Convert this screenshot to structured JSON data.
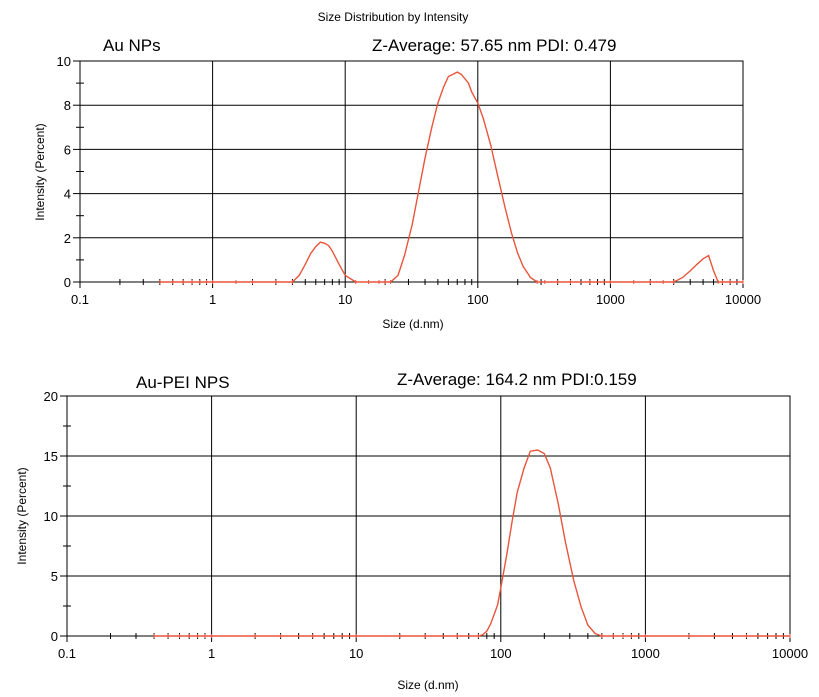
{
  "chart_data": [
    {
      "type": "line",
      "title": "Size Distribution by Intensity",
      "xlabel": "Size (d.nm)",
      "ylabel": "Intensity (Percent)",
      "x_scale": "log",
      "xlim": [
        0.1,
        10000
      ],
      "ylim": [
        0,
        10
      ],
      "x_ticks": [
        0.1,
        1,
        10,
        100,
        1000,
        10000
      ],
      "x_tick_labels": [
        "0.1",
        "1",
        "10",
        "100",
        "1000",
        "10000"
      ],
      "y_ticks": [
        0,
        2,
        4,
        6,
        8,
        10
      ],
      "y_tick_labels": [
        "0",
        "2",
        "4",
        "6",
        "8",
        "10"
      ],
      "grid": true,
      "annotations": {
        "left": "Au NPs",
        "right": "Z-Average: 57.65 nm PDI: 0.479"
      },
      "series": [
        {
          "x": [
            0.4,
            0.5,
            0.6,
            0.7,
            0.8,
            0.9,
            1,
            1.5,
            2,
            3,
            4,
            4.5,
            5,
            5.5,
            6,
            6.5,
            7,
            7.5,
            8,
            9,
            10,
            12,
            15,
            18,
            20,
            22,
            25,
            28,
            32,
            36,
            40,
            45,
            50,
            55,
            60,
            65,
            70,
            75,
            80,
            85,
            90,
            100,
            110,
            125,
            140,
            160,
            180,
            200,
            220,
            250,
            280,
            320,
            400,
            500,
            700,
            1000,
            1500,
            2000,
            2500,
            3000,
            3500,
            4000,
            4500,
            5000,
            5500,
            6000,
            6500,
            7000,
            8000,
            10000
          ],
          "y": [
            0,
            0,
            0,
            0,
            0,
            0,
            0,
            0,
            0,
            0,
            0,
            0.3,
            0.8,
            1.3,
            1.6,
            1.8,
            1.75,
            1.65,
            1.4,
            0.8,
            0.3,
            0,
            0,
            0,
            0,
            0,
            0.3,
            1.2,
            2.6,
            4.2,
            5.6,
            7.0,
            8.1,
            8.8,
            9.3,
            9.4,
            9.5,
            9.4,
            9.2,
            9.0,
            8.6,
            8.1,
            7.4,
            6.2,
            4.9,
            3.4,
            2.2,
            1.3,
            0.7,
            0.2,
            0,
            0,
            0,
            0,
            0,
            0,
            0,
            0,
            0,
            0,
            0.2,
            0.5,
            0.8,
            1.05,
            1.2,
            0.5,
            0,
            0,
            0,
            0
          ]
        }
      ]
    },
    {
      "type": "line",
      "title": "",
      "xlabel": "Size (d.nm)",
      "ylabel": "Intensity (Percent)",
      "x_scale": "log",
      "xlim": [
        0.1,
        10000
      ],
      "ylim": [
        0,
        20
      ],
      "x_ticks": [
        0.1,
        1,
        10,
        100,
        1000,
        10000
      ],
      "x_tick_labels": [
        "0.1",
        "1",
        "10",
        "100",
        "1000",
        "10000"
      ],
      "y_ticks": [
        0,
        5,
        10,
        15,
        20
      ],
      "y_tick_labels": [
        "0",
        "5",
        "10",
        "15",
        "20"
      ],
      "grid": true,
      "annotations": {
        "left": "Au-PEI NPS",
        "right": "Z-Average: 164.2 nm PDI:0.159"
      },
      "series": [
        {
          "x": [
            0.4,
            0.5,
            0.6,
            0.7,
            0.8,
            0.9,
            1,
            2,
            3,
            5,
            10,
            20,
            30,
            50,
            70,
            75,
            80,
            85,
            90,
            95,
            100,
            110,
            120,
            130,
            145,
            160,
            180,
            200,
            220,
            250,
            280,
            320,
            360,
            400,
            450,
            500,
            600,
            700,
            800,
            1000,
            2000,
            5000,
            10000
          ],
          "y": [
            0,
            0,
            0,
            0,
            0,
            0,
            0,
            0,
            0,
            0,
            0,
            0,
            0,
            0,
            0,
            0.1,
            0.4,
            1.0,
            1.8,
            2.6,
            4.0,
            6.8,
            9.6,
            12.0,
            14.0,
            15.4,
            15.5,
            15.2,
            14.0,
            11.0,
            7.8,
            4.6,
            2.4,
            0.9,
            0.2,
            0,
            0,
            0,
            0,
            0,
            0,
            0,
            0
          ]
        }
      ]
    }
  ]
}
